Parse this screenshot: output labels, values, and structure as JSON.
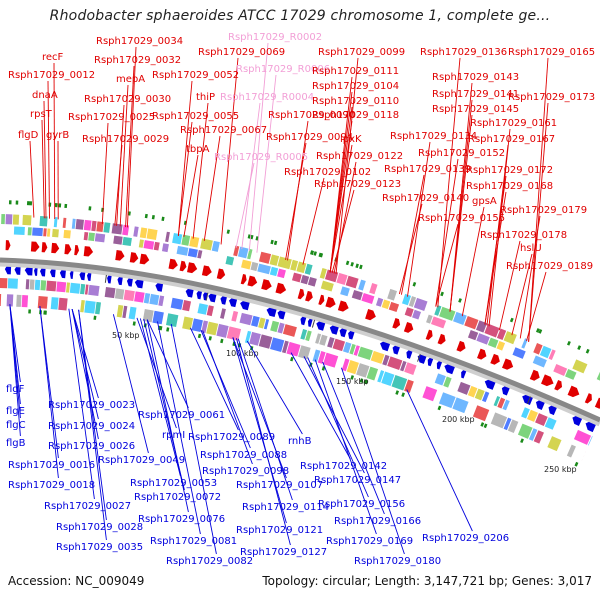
{
  "title": "Rhodobacter sphaeroides ATCC 17029 chromosome 1, complete ge...",
  "footer": {
    "accession": "Accession: NC_009049",
    "summary": "Topology: circular; Length: 3,147,721 bp; Genes: 3,017"
  },
  "colors": {
    "plus_strand": "#e00000",
    "minus_strand": "#0000dd",
    "rna": "#f29fd6",
    "backbone": "#888888",
    "gc_skew": "#1a8a1a"
  },
  "scale_labels": [
    "50 kbp",
    "100 kbp",
    "150 kbp",
    "200 kbp",
    "250 kbp"
  ],
  "top_labels": [
    {
      "text": "recF",
      "kind": "plus"
    },
    {
      "text": "Rsph17029_0012",
      "kind": "plus"
    },
    {
      "text": "dnaA",
      "kind": "plus"
    },
    {
      "text": "rpsT",
      "kind": "plus"
    },
    {
      "text": "flgD",
      "kind": "plus"
    },
    {
      "text": "gyrB",
      "kind": "plus"
    },
    {
      "text": "Rsph17029_0034",
      "kind": "plus"
    },
    {
      "text": "Rsph17029_0032",
      "kind": "plus"
    },
    {
      "text": "mepA",
      "kind": "plus"
    },
    {
      "text": "Rsph17029_0030",
      "kind": "plus"
    },
    {
      "text": "Rsph17029_0025",
      "kind": "plus"
    },
    {
      "text": "Rsph17029_0029",
      "kind": "plus"
    },
    {
      "text": "Rsph17029_0069",
      "kind": "plus"
    },
    {
      "text": "Rsph17029_0052",
      "kind": "plus"
    },
    {
      "text": "thiP",
      "kind": "plus"
    },
    {
      "text": "Rsph17029_0055",
      "kind": "plus"
    },
    {
      "text": "Rsph17029_0067",
      "kind": "plus"
    },
    {
      "text": "tbpA",
      "kind": "plus"
    },
    {
      "text": "Rsph17029_R0002",
      "kind": "rna"
    },
    {
      "text": "Rsph17029_R0006",
      "kind": "rna"
    },
    {
      "text": "Rsph17029_R0004",
      "kind": "rna"
    },
    {
      "text": "Rsph17029_R0005",
      "kind": "rna"
    },
    {
      "text": "Rsph17029_0099",
      "kind": "plus"
    },
    {
      "text": "Rsph17029_0111",
      "kind": "plus"
    },
    {
      "text": "Rsph17029_0104",
      "kind": "plus"
    },
    {
      "text": "Rsph17029_0110",
      "kind": "plus"
    },
    {
      "text": "Rsph17029_0118",
      "kind": "plus"
    },
    {
      "text": "Rsph17029_0090",
      "kind": "plus"
    },
    {
      "text": "Rsph17029_0094",
      "kind": "plus"
    },
    {
      "text": "lpxK",
      "kind": "plus"
    },
    {
      "text": "Rsph17029_0122",
      "kind": "plus"
    },
    {
      "text": "Rsph17029_0102",
      "kind": "plus"
    },
    {
      "text": "Rsph17029_0123",
      "kind": "plus"
    },
    {
      "text": "Rsph17029_0136",
      "kind": "plus"
    },
    {
      "text": "Rsph17029_0165",
      "kind": "plus"
    },
    {
      "text": "Rsph17029_0143",
      "kind": "plus"
    },
    {
      "text": "Rsph17029_0141",
      "kind": "plus"
    },
    {
      "text": "Rsph17029_0173",
      "kind": "plus"
    },
    {
      "text": "Rsph17029_0145",
      "kind": "plus"
    },
    {
      "text": "Rsph17029_0161",
      "kind": "plus"
    },
    {
      "text": "Rsph17029_0134",
      "kind": "plus"
    },
    {
      "text": "Rsph17029_0167",
      "kind": "plus"
    },
    {
      "text": "Rsph17029_0152",
      "kind": "plus"
    },
    {
      "text": "Rsph17029_0139",
      "kind": "plus"
    },
    {
      "text": "Rsph17029_0172",
      "kind": "plus"
    },
    {
      "text": "Rsph17029_0168",
      "kind": "plus"
    },
    {
      "text": "Rsph17029_0140",
      "kind": "plus"
    },
    {
      "text": "gpsA",
      "kind": "plus"
    },
    {
      "text": "Rsph17029_0179",
      "kind": "plus"
    },
    {
      "text": "Rsph17029_0155",
      "kind": "plus"
    },
    {
      "text": "Rsph17029_0178",
      "kind": "plus"
    },
    {
      "text": "hslU",
      "kind": "plus"
    },
    {
      "text": "Rsph17029_0189",
      "kind": "plus"
    }
  ],
  "bottom_labels": [
    {
      "text": "flgF"
    },
    {
      "text": "flgE"
    },
    {
      "text": "flgC"
    },
    {
      "text": "flgB"
    },
    {
      "text": "Rsph17029_0023"
    },
    {
      "text": "Rsph17029_0024"
    },
    {
      "text": "Rsph17029_0026"
    },
    {
      "text": "Rsph17029_0016"
    },
    {
      "text": "Rsph17029_0018"
    },
    {
      "text": "Rsph17029_0027"
    },
    {
      "text": "Rsph17029_0028"
    },
    {
      "text": "Rsph17029_0035"
    },
    {
      "text": "Rsph17029_0061"
    },
    {
      "text": "rpmI"
    },
    {
      "text": "Rsph17029_0089"
    },
    {
      "text": "Rsph17029_0049"
    },
    {
      "text": "Rsph17029_0088"
    },
    {
      "text": "Rsph17029_0053"
    },
    {
      "text": "Rsph17029_0098"
    },
    {
      "text": "Rsph17029_0072"
    },
    {
      "text": "Rsph17029_0076"
    },
    {
      "text": "Rsph17029_0081"
    },
    {
      "text": "Rsph17029_0082"
    },
    {
      "text": "rnhB"
    },
    {
      "text": "Rsph17029_0107"
    },
    {
      "text": "Rsph17029_0114"
    },
    {
      "text": "Rsph17029_0121"
    },
    {
      "text": "Rsph17029_0127"
    },
    {
      "text": "Rsph17029_0142"
    },
    {
      "text": "Rsph17029_0147"
    },
    {
      "text": "Rsph17029_0156"
    },
    {
      "text": "Rsph17029_0166"
    },
    {
      "text": "Rsph17029_0169"
    },
    {
      "text": "Rsph17029_0180"
    },
    {
      "text": "Rsph17029_0206"
    }
  ]
}
